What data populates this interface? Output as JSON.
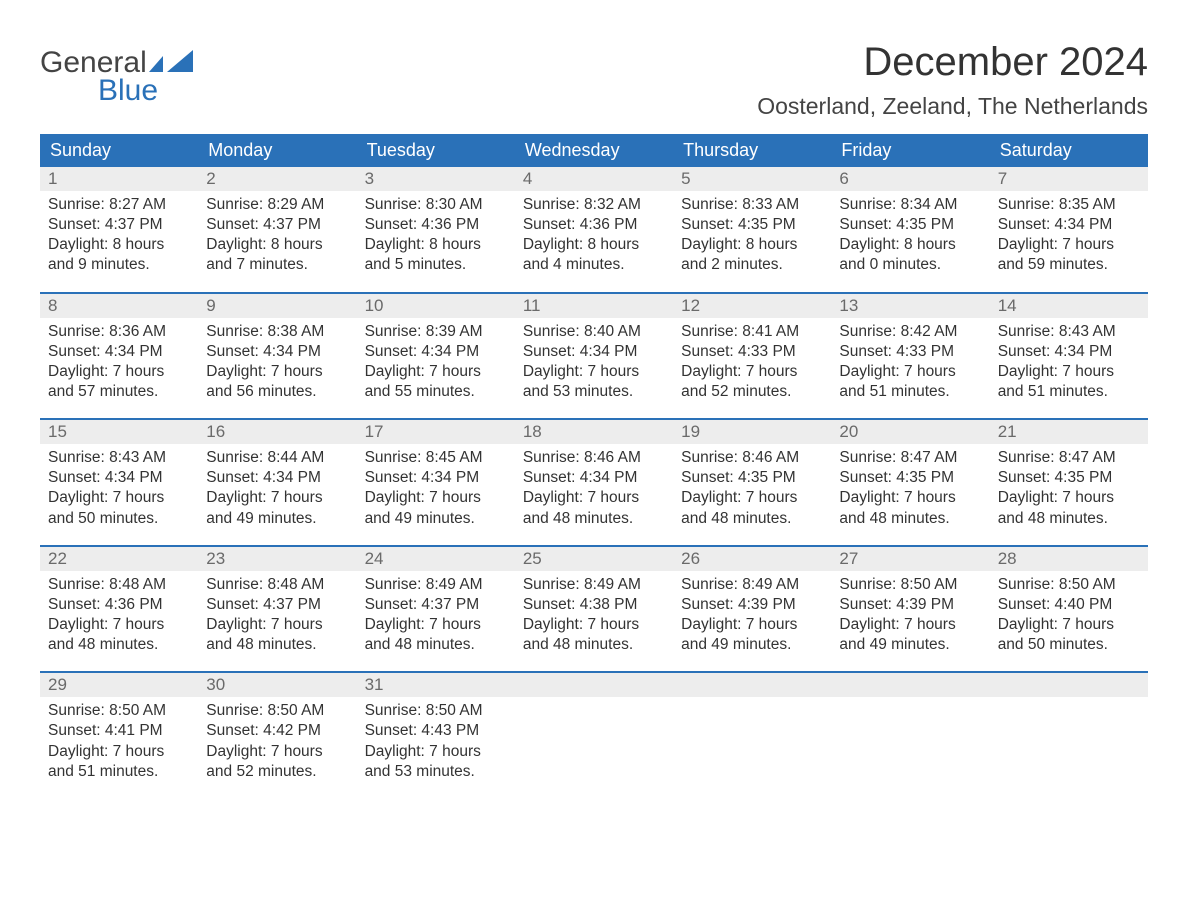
{
  "colors": {
    "header_bg": "#2a71b8",
    "header_text": "#ffffff",
    "daynum_bg": "#ededed",
    "daynum_text": "#6a6a6a",
    "body_text": "#333333",
    "week_sep": "#2a71b8",
    "logo_gray": "#444444",
    "logo_blue": "#2a71b8",
    "page_bg": "#ffffff"
  },
  "typography": {
    "month_title_pt": 40,
    "location_pt": 23,
    "weekday_pt": 18,
    "daynum_pt": 17,
    "body_pt": 15.5,
    "font_family": "Arial"
  },
  "logo": {
    "line1": "General",
    "line2": "Blue"
  },
  "title": "December 2024",
  "location": "Oosterland, Zeeland, The Netherlands",
  "weekdays": [
    "Sunday",
    "Monday",
    "Tuesday",
    "Wednesday",
    "Thursday",
    "Friday",
    "Saturday"
  ],
  "calendar": {
    "type": "table",
    "columns": 7,
    "weeks": [
      [
        {
          "n": "1",
          "sunrise": "Sunrise: 8:27 AM",
          "sunset": "Sunset: 4:37 PM",
          "day1": "Daylight: 8 hours",
          "day2": "and 9 minutes."
        },
        {
          "n": "2",
          "sunrise": "Sunrise: 8:29 AM",
          "sunset": "Sunset: 4:37 PM",
          "day1": "Daylight: 8 hours",
          "day2": "and 7 minutes."
        },
        {
          "n": "3",
          "sunrise": "Sunrise: 8:30 AM",
          "sunset": "Sunset: 4:36 PM",
          "day1": "Daylight: 8 hours",
          "day2": "and 5 minutes."
        },
        {
          "n": "4",
          "sunrise": "Sunrise: 8:32 AM",
          "sunset": "Sunset: 4:36 PM",
          "day1": "Daylight: 8 hours",
          "day2": "and 4 minutes."
        },
        {
          "n": "5",
          "sunrise": "Sunrise: 8:33 AM",
          "sunset": "Sunset: 4:35 PM",
          "day1": "Daylight: 8 hours",
          "day2": "and 2 minutes."
        },
        {
          "n": "6",
          "sunrise": "Sunrise: 8:34 AM",
          "sunset": "Sunset: 4:35 PM",
          "day1": "Daylight: 8 hours",
          "day2": "and 0 minutes."
        },
        {
          "n": "7",
          "sunrise": "Sunrise: 8:35 AM",
          "sunset": "Sunset: 4:34 PM",
          "day1": "Daylight: 7 hours",
          "day2": "and 59 minutes."
        }
      ],
      [
        {
          "n": "8",
          "sunrise": "Sunrise: 8:36 AM",
          "sunset": "Sunset: 4:34 PM",
          "day1": "Daylight: 7 hours",
          "day2": "and 57 minutes."
        },
        {
          "n": "9",
          "sunrise": "Sunrise: 8:38 AM",
          "sunset": "Sunset: 4:34 PM",
          "day1": "Daylight: 7 hours",
          "day2": "and 56 minutes."
        },
        {
          "n": "10",
          "sunrise": "Sunrise: 8:39 AM",
          "sunset": "Sunset: 4:34 PM",
          "day1": "Daylight: 7 hours",
          "day2": "and 55 minutes."
        },
        {
          "n": "11",
          "sunrise": "Sunrise: 8:40 AM",
          "sunset": "Sunset: 4:34 PM",
          "day1": "Daylight: 7 hours",
          "day2": "and 53 minutes."
        },
        {
          "n": "12",
          "sunrise": "Sunrise: 8:41 AM",
          "sunset": "Sunset: 4:33 PM",
          "day1": "Daylight: 7 hours",
          "day2": "and 52 minutes."
        },
        {
          "n": "13",
          "sunrise": "Sunrise: 8:42 AM",
          "sunset": "Sunset: 4:33 PM",
          "day1": "Daylight: 7 hours",
          "day2": "and 51 minutes."
        },
        {
          "n": "14",
          "sunrise": "Sunrise: 8:43 AM",
          "sunset": "Sunset: 4:34 PM",
          "day1": "Daylight: 7 hours",
          "day2": "and 51 minutes."
        }
      ],
      [
        {
          "n": "15",
          "sunrise": "Sunrise: 8:43 AM",
          "sunset": "Sunset: 4:34 PM",
          "day1": "Daylight: 7 hours",
          "day2": "and 50 minutes."
        },
        {
          "n": "16",
          "sunrise": "Sunrise: 8:44 AM",
          "sunset": "Sunset: 4:34 PM",
          "day1": "Daylight: 7 hours",
          "day2": "and 49 minutes."
        },
        {
          "n": "17",
          "sunrise": "Sunrise: 8:45 AM",
          "sunset": "Sunset: 4:34 PM",
          "day1": "Daylight: 7 hours",
          "day2": "and 49 minutes."
        },
        {
          "n": "18",
          "sunrise": "Sunrise: 8:46 AM",
          "sunset": "Sunset: 4:34 PM",
          "day1": "Daylight: 7 hours",
          "day2": "and 48 minutes."
        },
        {
          "n": "19",
          "sunrise": "Sunrise: 8:46 AM",
          "sunset": "Sunset: 4:35 PM",
          "day1": "Daylight: 7 hours",
          "day2": "and 48 minutes."
        },
        {
          "n": "20",
          "sunrise": "Sunrise: 8:47 AM",
          "sunset": "Sunset: 4:35 PM",
          "day1": "Daylight: 7 hours",
          "day2": "and 48 minutes."
        },
        {
          "n": "21",
          "sunrise": "Sunrise: 8:47 AM",
          "sunset": "Sunset: 4:35 PM",
          "day1": "Daylight: 7 hours",
          "day2": "and 48 minutes."
        }
      ],
      [
        {
          "n": "22",
          "sunrise": "Sunrise: 8:48 AM",
          "sunset": "Sunset: 4:36 PM",
          "day1": "Daylight: 7 hours",
          "day2": "and 48 minutes."
        },
        {
          "n": "23",
          "sunrise": "Sunrise: 8:48 AM",
          "sunset": "Sunset: 4:37 PM",
          "day1": "Daylight: 7 hours",
          "day2": "and 48 minutes."
        },
        {
          "n": "24",
          "sunrise": "Sunrise: 8:49 AM",
          "sunset": "Sunset: 4:37 PM",
          "day1": "Daylight: 7 hours",
          "day2": "and 48 minutes."
        },
        {
          "n": "25",
          "sunrise": "Sunrise: 8:49 AM",
          "sunset": "Sunset: 4:38 PM",
          "day1": "Daylight: 7 hours",
          "day2": "and 48 minutes."
        },
        {
          "n": "26",
          "sunrise": "Sunrise: 8:49 AM",
          "sunset": "Sunset: 4:39 PM",
          "day1": "Daylight: 7 hours",
          "day2": "and 49 minutes."
        },
        {
          "n": "27",
          "sunrise": "Sunrise: 8:50 AM",
          "sunset": "Sunset: 4:39 PM",
          "day1": "Daylight: 7 hours",
          "day2": "and 49 minutes."
        },
        {
          "n": "28",
          "sunrise": "Sunrise: 8:50 AM",
          "sunset": "Sunset: 4:40 PM",
          "day1": "Daylight: 7 hours",
          "day2": "and 50 minutes."
        }
      ],
      [
        {
          "n": "29",
          "sunrise": "Sunrise: 8:50 AM",
          "sunset": "Sunset: 4:41 PM",
          "day1": "Daylight: 7 hours",
          "day2": "and 51 minutes."
        },
        {
          "n": "30",
          "sunrise": "Sunrise: 8:50 AM",
          "sunset": "Sunset: 4:42 PM",
          "day1": "Daylight: 7 hours",
          "day2": "and 52 minutes."
        },
        {
          "n": "31",
          "sunrise": "Sunrise: 8:50 AM",
          "sunset": "Sunset: 4:43 PM",
          "day1": "Daylight: 7 hours",
          "day2": "and 53 minutes."
        },
        null,
        null,
        null,
        null
      ]
    ]
  }
}
